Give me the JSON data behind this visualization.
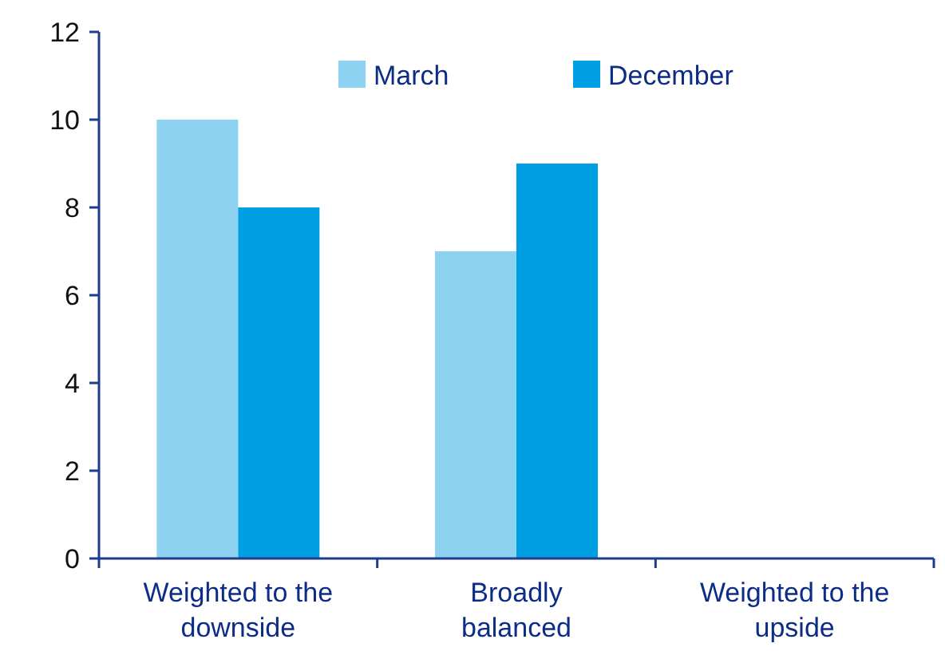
{
  "chart_data": {
    "type": "bar",
    "categories": [
      "Weighted to the\ndownside",
      "Broadly\nbalanced",
      "Weighted to the\nupside"
    ],
    "series": [
      {
        "name": "March",
        "color": "#8dd3f1",
        "values": [
          10,
          7,
          0
        ]
      },
      {
        "name": "December",
        "color": "#009fe3",
        "values": [
          8,
          9,
          0
        ]
      }
    ],
    "ylim": [
      0,
      12
    ],
    "yticks": [
      0,
      2,
      4,
      6,
      8,
      10,
      12
    ],
    "grid": false,
    "legend": "top right"
  }
}
